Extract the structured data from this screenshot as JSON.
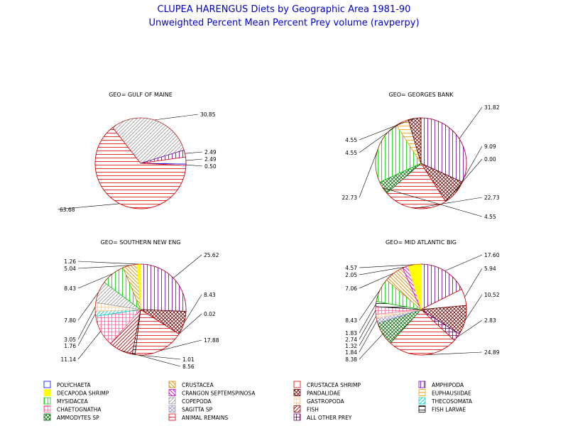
{
  "chart_data": {
    "type": "pie",
    "title": "CLUPEA HARENGUS Diets by Geographic Area 1981-90",
    "subtitle": "Unweighted Percent Mean Percent Prey  volume (ravperpy)",
    "categories": [
      {
        "name": "POLYCHAETA",
        "color": "#0000ff",
        "pattern": "solidline"
      },
      {
        "name": "DECAPODA SHRIMP",
        "color": "#ffff00",
        "pattern": "solid"
      },
      {
        "name": "MYSIDACEA",
        "color": "#00cc00",
        "pattern": "vert"
      },
      {
        "name": "CHAETOGNATHA",
        "color": "#ff6699",
        "pattern": "cross"
      },
      {
        "name": "AMMODYTES SP",
        "color": "#006600",
        "pattern": "xcross"
      },
      {
        "name": "CRUSTACEA",
        "color": "#cc8800",
        "pattern": "diagB"
      },
      {
        "name": "CRANGON SEPTEMSPINOSA",
        "color": "#cc00cc",
        "pattern": "diagB"
      },
      {
        "name": "COPEPODA",
        "color": "#999999",
        "pattern": "diagF"
      },
      {
        "name": "SAGITTA SP",
        "color": "#9999cc",
        "pattern": "xcross"
      },
      {
        "name": "ANIMAL REMAINS",
        "color": "#dd0000",
        "pattern": "horiz"
      },
      {
        "name": "CRUSTACEA SHRIMP",
        "color": "#dd0000",
        "pattern": "solidline"
      },
      {
        "name": "PANDALIDAE",
        "color": "#660000",
        "pattern": "xcross"
      },
      {
        "name": "GASTROPODA",
        "color": "#ffcc99",
        "pattern": "cross"
      },
      {
        "name": "FISH",
        "color": "#990000",
        "pattern": "diagF"
      },
      {
        "name": "ALL OTHER PREY",
        "color": "#660066",
        "pattern": "cross"
      },
      {
        "name": "AMPHIPODA",
        "color": "#660099",
        "pattern": "vert"
      },
      {
        "name": "EUPHAUSIIDAE",
        "color": "#ff9900",
        "pattern": "horiz"
      },
      {
        "name": "THECOSOMATA",
        "color": "#00cccc",
        "pattern": "diagF"
      },
      {
        "name": "FISH LARVAE",
        "color": "#000000",
        "pattern": "horiz"
      }
    ],
    "charts": [
      {
        "geo": "GEO= GULF OF MAINE",
        "slices": [
          {
            "category": "COPEPODA",
            "value": 30.85,
            "label": "30.85"
          },
          {
            "category": "AMPHIPODA",
            "value": 2.49,
            "label": "2.49"
          },
          {
            "category": "CRUSTACEA SHRIMP",
            "value": 2.49,
            "label": "2.49"
          },
          {
            "category": "POLYCHAETA",
            "value": 0.5,
            "label": "0.50"
          },
          {
            "category": "ANIMAL REMAINS",
            "value": 63.68,
            "label": "63.68"
          }
        ]
      },
      {
        "geo": "GEO= GEORGES BANK",
        "slices": [
          {
            "category": "AMPHIPODA",
            "value": 31.82,
            "label": "31.82"
          },
          {
            "category": "PANDALIDAE",
            "value": 9.09,
            "label": "9.09"
          },
          {
            "category": "CRUSTACEA SHRIMP",
            "value": 0.0,
            "label": "0.00"
          },
          {
            "category": "ANIMAL REMAINS",
            "value": 22.73,
            "label": "22.73"
          },
          {
            "category": "AMMODYTES SP",
            "value": 4.55,
            "label": "4.55"
          },
          {
            "category": "MYSIDACEA",
            "value": 22.73,
            "label": "22.73"
          },
          {
            "category": "EUPHAUSIIDAE",
            "value": 4.55,
            "label": "4.55"
          },
          {
            "category": "PANDALIDAE",
            "value": 4.55,
            "label": "4.55"
          }
        ]
      },
      {
        "geo": "GEO= SOUTHERN NEW ENG",
        "slices": [
          {
            "category": "AMPHIPODA",
            "value": 25.62,
            "label": "25.62"
          },
          {
            "category": "PANDALIDAE",
            "value": 8.43,
            "label": "8.43"
          },
          {
            "category": "CRUSTACEA SHRIMP",
            "value": 0.02,
            "label": "0.02"
          },
          {
            "category": "ANIMAL REMAINS",
            "value": 17.88,
            "label": "17.88"
          },
          {
            "category": "FISH LARVAE",
            "value": 1.01,
            "label": "1.01"
          },
          {
            "category": "FISH",
            "value": 8.56,
            "label": "8.56"
          },
          {
            "category": "CHAETOGNATHA",
            "value": 11.14,
            "label": "11.14"
          },
          {
            "category": "THECOSOMATA",
            "value": 1.76,
            "label": "1.76"
          },
          {
            "category": "GASTROPODA",
            "value": 3.05,
            "label": "3.05"
          },
          {
            "category": "COPEPODA",
            "value": 7.8,
            "label": "7.80"
          },
          {
            "category": "MYSIDACEA",
            "value": 8.43,
            "label": "8.43"
          },
          {
            "category": "CRUSTACEA",
            "value": 5.04,
            "label": "5.04"
          },
          {
            "category": "DECAPODA SHRIMP",
            "value": 1.26,
            "label": "1.26"
          }
        ]
      },
      {
        "geo": "GEO= MID ATLANTIC BIG",
        "slices": [
          {
            "category": "AMPHIPODA",
            "value": 17.6,
            "label": "17.60"
          },
          {
            "category": "CRUSTACEA SHRIMP",
            "value": 5.94,
            "label": "5.94"
          },
          {
            "category": "PANDALIDAE",
            "value": 10.52,
            "label": "10.52"
          },
          {
            "category": "ALL OTHER PREY",
            "value": 2.83,
            "label": "2.83"
          },
          {
            "category": "ANIMAL REMAINS",
            "value": 24.89,
            "label": "24.89"
          },
          {
            "category": "AMMODYTES SP",
            "value": 8.38,
            "label": "8.38"
          },
          {
            "category": "SAGITTA SP",
            "value": 1.84,
            "label": "1.84"
          },
          {
            "category": "GASTROPODA",
            "value": 1.32,
            "label": "1.32"
          },
          {
            "category": "CHAETOGNATHA",
            "value": 2.74,
            "label": "2.74"
          },
          {
            "category": "FISH LARVAE",
            "value": 1.83,
            "label": "1.83"
          },
          {
            "category": "MYSIDACEA",
            "value": 8.43,
            "label": "8.43"
          },
          {
            "category": "CRUSTACEA",
            "value": 7.06,
            "label": "7.06"
          },
          {
            "category": "CRANGON SEPTEMSPINOSA",
            "value": 2.05,
            "label": "2.05"
          },
          {
            "category": "DECAPODA SHRIMP",
            "value": 4.57,
            "label": "4.57"
          }
        ]
      }
    ],
    "legend": {
      "placement": "bottom",
      "columns": [
        [
          "POLYCHAETA",
          "DECAPODA SHRIMP",
          "MYSIDACEA",
          "CHAETOGNATHA",
          "AMMODYTES SP"
        ],
        [
          "CRUSTACEA",
          "CRANGON SEPTEMSPINOSA",
          "COPEPODA",
          "SAGITTA SP",
          "ANIMAL REMAINS"
        ],
        [
          "CRUSTACEA SHRIMP",
          "PANDALIDAE",
          "GASTROPODA",
          "FISH",
          "ALL OTHER PREY"
        ],
        [
          "AMPHIPODA",
          "EUPHAUSIIDAE",
          "THECOSOMATA",
          "FISH LARVAE"
        ]
      ]
    }
  }
}
